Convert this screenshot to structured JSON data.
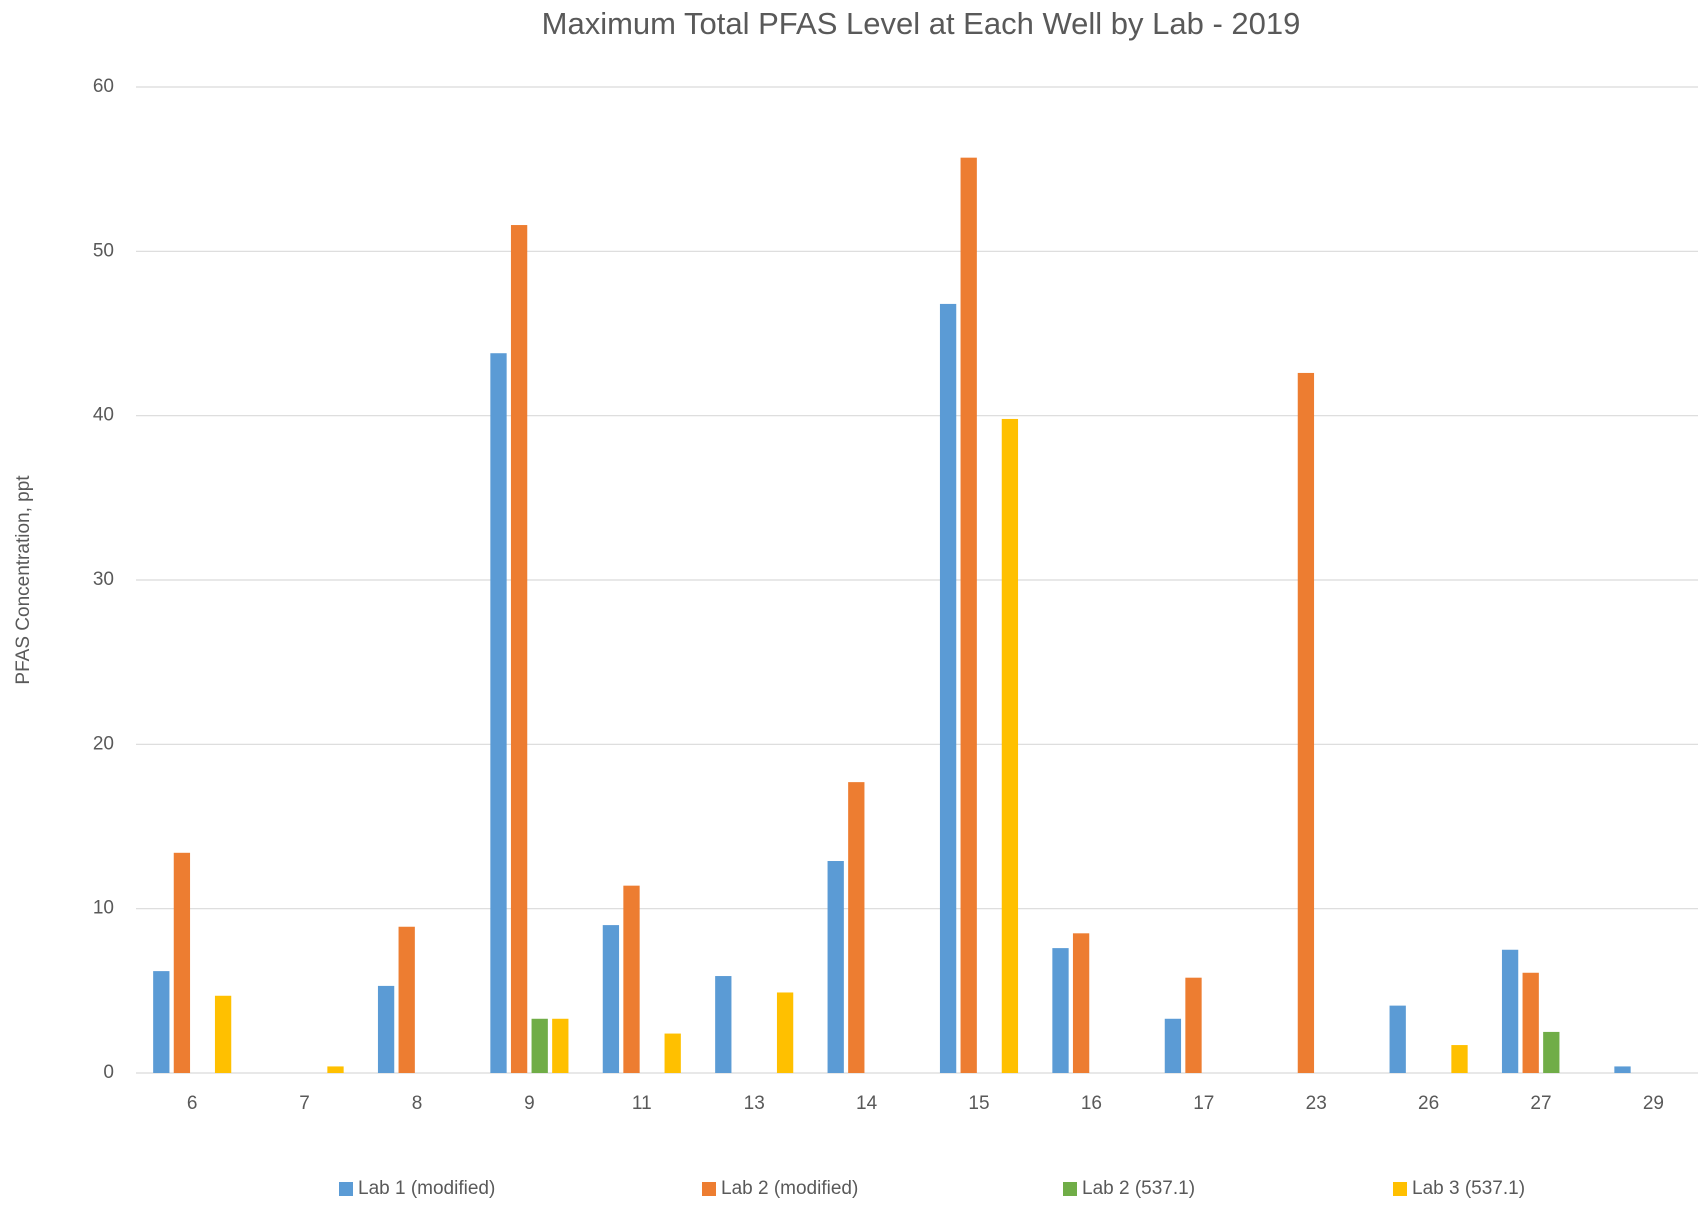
{
  "chart_data": {
    "type": "bar",
    "title": "Maximum Total PFAS Level at Each Well by Lab - 2019",
    "y_label": "PFAS Concentration, ppt",
    "categories": [
      "6",
      "7",
      "8",
      "9",
      "11",
      "13",
      "14",
      "15",
      "16",
      "17",
      "23",
      "26",
      "27",
      "29"
    ],
    "series": [
      {
        "name": "Lab 1 (modified)",
        "color": "#5b9bd5",
        "values": [
          6.2,
          null,
          5.3,
          43.8,
          9.0,
          5.9,
          12.9,
          46.8,
          7.6,
          3.3,
          null,
          4.1,
          7.5,
          0.4
        ]
      },
      {
        "name": "Lab 2 (modified)",
        "color": "#ed7d31",
        "values": [
          13.4,
          null,
          8.9,
          51.6,
          11.4,
          null,
          17.7,
          55.7,
          8.5,
          5.8,
          42.6,
          null,
          6.1,
          null
        ]
      },
      {
        "name": "Lab 2 (537.1)",
        "color": "#70ad47",
        "values": [
          null,
          null,
          null,
          3.3,
          null,
          null,
          null,
          null,
          null,
          null,
          null,
          null,
          2.5,
          null
        ]
      },
      {
        "name": "Lab 3 (537.1)",
        "color": "#ffc000",
        "values": [
          4.7,
          0.4,
          null,
          3.3,
          2.4,
          4.9,
          null,
          39.8,
          null,
          null,
          null,
          1.7,
          null,
          null
        ]
      }
    ],
    "ylim": [
      0,
      60
    ],
    "yticks": [
      0,
      10,
      20,
      30,
      40,
      50,
      60
    ],
    "grid": true,
    "legend": "bottom"
  }
}
